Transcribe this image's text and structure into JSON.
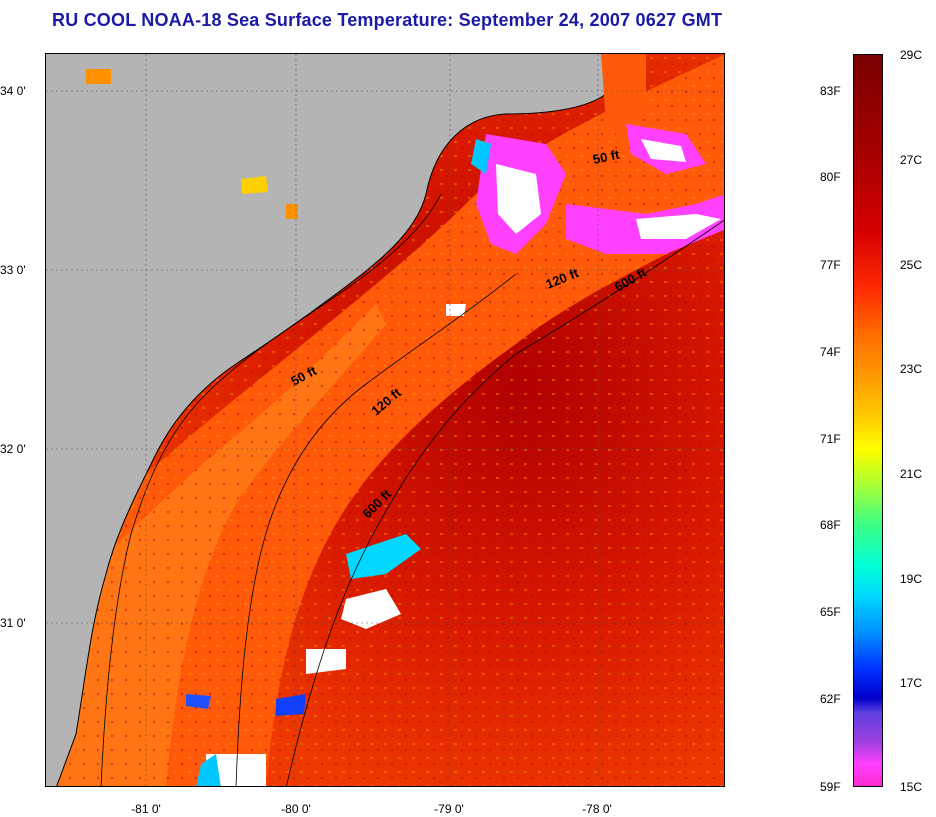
{
  "title": "RU COOL  NOAA-18  Sea Surface Temperature:  September 24, 2007 0627 GMT",
  "lat_labels": [
    "34 0'",
    "33 0'",
    "32 0'",
    "31 0'"
  ],
  "lon_labels": [
    "-81 0'",
    "-80 0'",
    "-79 0'",
    "-78 0'"
  ],
  "contours": [
    "50 ft",
    "120 ft",
    "600 ft",
    "50 ft",
    "120 ft",
    "600 ft"
  ],
  "colorbar": {
    "fahrenheit": [
      "83F",
      "80F",
      "77F",
      "74F",
      "71F",
      "68F",
      "65F",
      "62F",
      "59F"
    ],
    "celsius": [
      "29C",
      "27C",
      "25C",
      "23C",
      "21C",
      "19C",
      "17C",
      "15C"
    ]
  },
  "colors": {
    "land": "#b4b4b4",
    "title": "#1a1aa6",
    "warm_water": "#e83000",
    "shelf_water": "#ff6a10",
    "clouds": "#ff40ff"
  }
}
